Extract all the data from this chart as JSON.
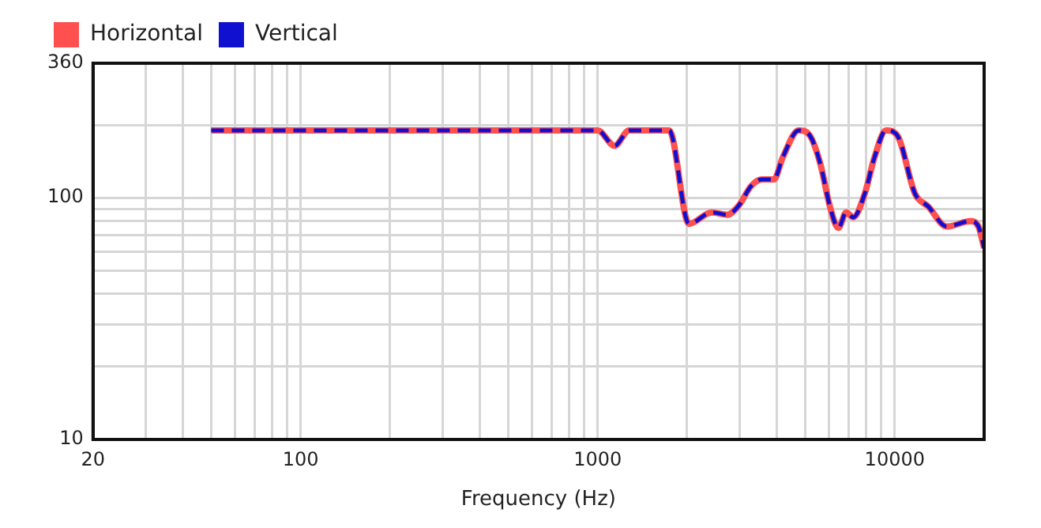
{
  "chart_data": {
    "type": "line",
    "xlabel": "Frequency (Hz)",
    "x": [
      50,
      1000,
      1140,
      1276,
      1740,
      2030,
      2420,
      2730,
      2970,
      3290,
      3570,
      3920,
      4200,
      4750,
      5160,
      5600,
      6080,
      6460,
      6870,
      7250,
      7930,
      8550,
      9350,
      10230,
      11700,
      12970,
      14970,
      17990,
      19140,
      20000
    ],
    "series": [
      {
        "name": "Horizontal",
        "color": "#ff5050",
        "line_style": "solid",
        "values": [
          190,
          190,
          164,
          190,
          190,
          78,
          87,
          85,
          92,
          112,
          119,
          119,
          147,
          190,
          182,
          140,
          90,
          75,
          87,
          83,
          104,
          147,
          190,
          180,
          104,
          92,
          76,
          80,
          76,
          62
        ]
      },
      {
        "name": "Vertical",
        "color": "#1010d0",
        "line_style": "dashed",
        "values": [
          190,
          190,
          164,
          190,
          190,
          78,
          87,
          85,
          92,
          112,
          119,
          119,
          147,
          190,
          182,
          140,
          90,
          75,
          87,
          83,
          104,
          147,
          190,
          180,
          104,
          92,
          76,
          80,
          76,
          62
        ]
      }
    ],
    "log": "xy",
    "grid": true,
    "legend": "top left",
    "marker": "none",
    "xlim": [
      20,
      20000
    ],
    "xticks": [
      20,
      {
        "value": 30,
        "label": null
      },
      {
        "value": 40,
        "label": null
      },
      {
        "value": 50,
        "label": null
      },
      {
        "value": 60,
        "label": null
      },
      {
        "value": 70,
        "label": null
      },
      {
        "value": 80,
        "label": null
      },
      {
        "value": 90,
        "label": null
      },
      100,
      {
        "value": 200,
        "label": null
      },
      {
        "value": 300,
        "label": null
      },
      {
        "value": 400,
        "label": null
      },
      {
        "value": 500,
        "label": null
      },
      {
        "value": 600,
        "label": null
      },
      {
        "value": 700,
        "label": null
      },
      {
        "value": 800,
        "label": null
      },
      {
        "value": 900,
        "label": null
      },
      1000,
      {
        "value": 2000,
        "label": null
      },
      {
        "value": 3000,
        "label": null
      },
      {
        "value": 4000,
        "label": null
      },
      {
        "value": 5000,
        "label": null
      },
      {
        "value": 6000,
        "label": null
      },
      {
        "value": 7000,
        "label": null
      },
      {
        "value": 8000,
        "label": null
      },
      {
        "value": 9000,
        "label": null
      },
      10000
    ],
    "ylim": [
      10,
      360
    ],
    "yticks": [
      10,
      {
        "value": 20,
        "label": null
      },
      {
        "value": 30,
        "label": null
      },
      {
        "value": 40,
        "label": null
      },
      {
        "value": 50,
        "label": null
      },
      {
        "value": 60,
        "label": null
      },
      {
        "value": 70,
        "label": null
      },
      {
        "value": 80,
        "label": null
      },
      {
        "value": 90,
        "label": null
      },
      100,
      {
        "value": 200,
        "label": null
      },
      360
    ]
  }
}
